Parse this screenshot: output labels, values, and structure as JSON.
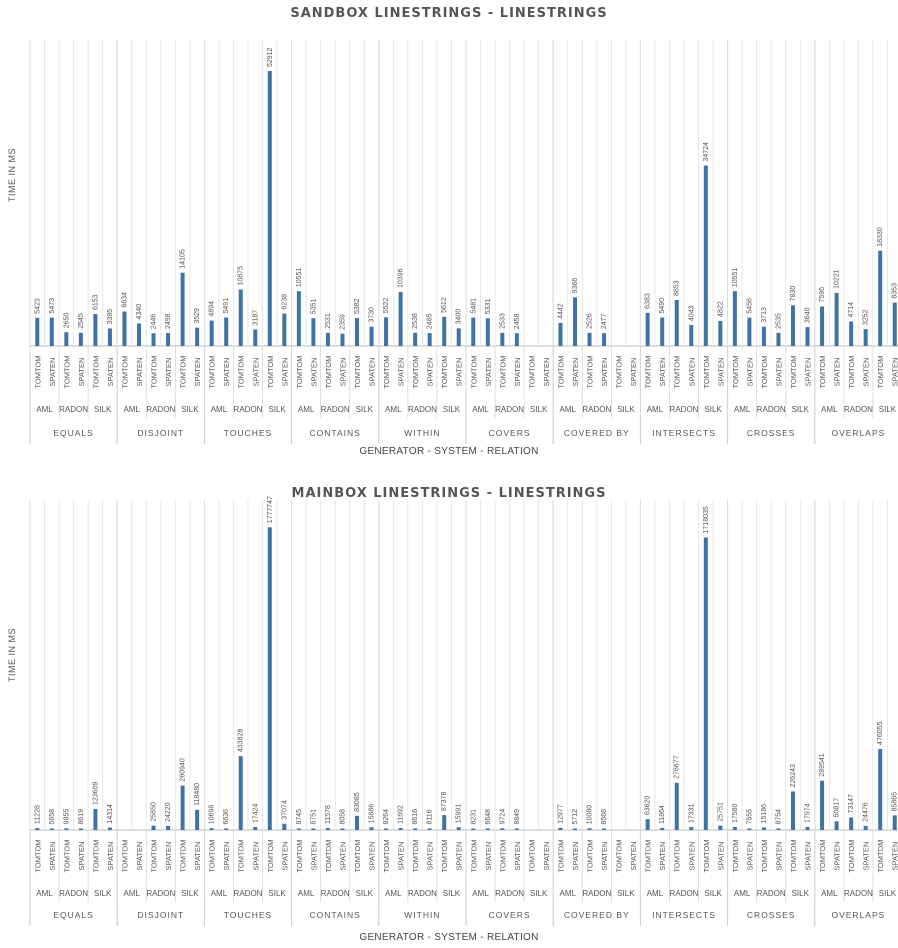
{
  "chart_data": [
    {
      "type": "bar",
      "title": "SANDBOX LINESTRINGS - LINESTRINGS",
      "ylabel": "TIME IN MS",
      "xlabel": "GENERATOR - SYSTEM - RELATION",
      "ylim": [
        0,
        56000
      ],
      "relations": [
        "EQUALS",
        "DISJOINT",
        "TOUCHES",
        "CONTAINS",
        "WITHIN",
        "COVERS",
        "COVERED BY",
        "INTERSECTS",
        "CROSSES",
        "OVERLAPS"
      ],
      "generators": [
        "AML",
        "RADON",
        "SILK"
      ],
      "systems": [
        "TOMTOM",
        "SPATEN"
      ],
      "values": [
        [
          5423,
          5473,
          2650,
          2545,
          6153,
          3385
        ],
        [
          6634,
          4340,
          2446,
          2498,
          14105,
          3529
        ],
        [
          4894,
          5491,
          10875,
          3187,
          52912,
          6238
        ],
        [
          10551,
          5351,
          2531,
          2359,
          5382,
          3730
        ],
        [
          5522,
          10396,
          2538,
          2485,
          5612,
          3400
        ],
        [
          5481,
          5331,
          2533,
          2458,
          null,
          null
        ],
        [
          4442,
          9366,
          2526,
          2477,
          null,
          null
        ],
        [
          6383,
          5490,
          8853,
          4043,
          34724,
          4822
        ],
        [
          10551,
          5456,
          3713,
          2535,
          7830,
          3640
        ],
        [
          7596,
          10221,
          4714,
          3252,
          18330,
          8353
        ]
      ]
    },
    {
      "type": "bar",
      "title": "MAINBOX LINESTRINGS - LINESTRINGS",
      "ylabel": "TIME IN MS",
      "xlabel": "GENERATOR - SYSTEM - RELATION",
      "ylim": [
        0,
        1850000
      ],
      "relations": [
        "EQUALS",
        "DISJOINT",
        "TOUCHES",
        "CONTAINS",
        "WITHIN",
        "COVERS",
        "COVERED BY",
        "INTERSECTS",
        "CROSSES",
        "OVERLAPS"
      ],
      "generators": [
        "AML",
        "RADON",
        "SILK"
      ],
      "systems": [
        "TOMTOM",
        "SPATEN"
      ],
      "values": [
        [
          11228,
          5658,
          9855,
          8619,
          123609,
          14314
        ],
        [
          null,
          null,
          25850,
          24220,
          260940,
          118480
        ],
        [
          10698,
          6636,
          433828,
          17424,
          1777747,
          37074
        ],
        [
          8745,
          8751,
          11578,
          8058,
          83085,
          15886
        ],
        [
          8264,
          11692,
          8616,
          8116,
          87378,
          15991
        ],
        [
          8231,
          6648,
          9724,
          8849,
          null,
          null
        ],
        [
          12977,
          5712,
          10080,
          8568,
          null,
          null
        ],
        [
          63620,
          11864,
          276877,
          17331,
          1718035,
          25751
        ],
        [
          17580,
          7555,
          15186,
          8754,
          226243,
          17974
        ],
        [
          289541,
          50817,
          73147,
          24476,
          476055,
          85865
        ]
      ]
    }
  ]
}
